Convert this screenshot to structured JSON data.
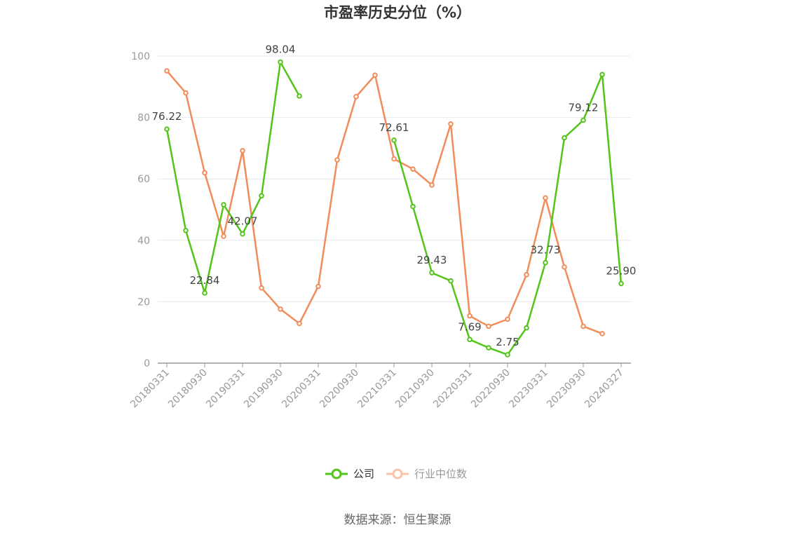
{
  "chart_data": {
    "type": "line",
    "title": "市盈率历史分位（%）",
    "ylim": [
      0,
      100
    ],
    "yticks": [
      "0",
      "20",
      "40",
      "60",
      "80",
      "100"
    ],
    "x_tick_labels": [
      "20180331",
      "20180930",
      "20190331",
      "20190930",
      "20200331",
      "20200930",
      "20210331",
      "20210930",
      "20220331",
      "20220930",
      "20230331",
      "20230930",
      "20240327"
    ],
    "grid": true,
    "legend_position": "bottom",
    "series": [
      {
        "name": "公司",
        "color": "#52c41a",
        "values": [
          76.22,
          43.2,
          22.84,
          51.6,
          42.07,
          54.5,
          98.04,
          87.0,
          null,
          null,
          null,
          null,
          72.61,
          51.0,
          29.43,
          26.8,
          7.69,
          5.0,
          2.75,
          11.5,
          32.73,
          73.4,
          79.12,
          94.0,
          25.9
        ],
        "labels": [
          {
            "index": 0,
            "text": "76.22"
          },
          {
            "index": 2,
            "text": "22.84"
          },
          {
            "index": 4,
            "text": "42.07"
          },
          {
            "index": 6,
            "text": "98.04"
          },
          {
            "index": 12,
            "text": "72.61"
          },
          {
            "index": 14,
            "text": "29.43"
          },
          {
            "index": 16,
            "text": "7.69"
          },
          {
            "index": 18,
            "text": "2.75"
          },
          {
            "index": 20,
            "text": "32.73"
          },
          {
            "index": 22,
            "text": "79.12"
          },
          {
            "index": 24,
            "text": "25.90"
          }
        ]
      },
      {
        "name": "行业中位数",
        "color": "#f28c5a",
        "values": [
          95.2,
          88.0,
          62.0,
          41.3,
          69.2,
          24.5,
          17.6,
          12.9,
          25.0,
          66.2,
          86.8,
          93.8,
          66.5,
          63.2,
          58.0,
          77.9,
          15.4,
          12.0,
          14.3,
          28.8,
          53.8,
          31.3,
          12.0,
          9.6,
          null
        ]
      }
    ]
  },
  "legend": {
    "items": [
      "公司",
      "行业中位数"
    ]
  },
  "source": "数据来源：恒生聚源"
}
